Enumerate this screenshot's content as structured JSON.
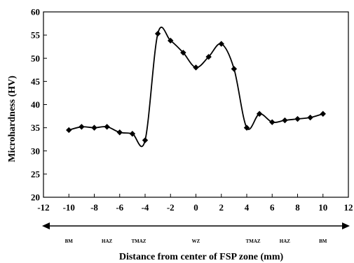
{
  "chart_data": {
    "type": "line",
    "title": "",
    "xlabel": "Distance from center of FSP zone (mm)",
    "ylabel": "Microhardness (HV)",
    "xlim": [
      -12,
      12
    ],
    "ylim": [
      20,
      60
    ],
    "x_ticks": [
      "-12",
      "-10",
      "-8",
      "-6",
      "-4",
      "-2",
      "0",
      "2",
      "4",
      "6",
      "8",
      "10",
      "12"
    ],
    "y_ticks": [
      "20",
      "25",
      "30",
      "35",
      "40",
      "45",
      "50",
      "55",
      "60"
    ],
    "zones": [
      {
        "label": "BM",
        "x": -10
      },
      {
        "label": "HAZ",
        "x": -7
      },
      {
        "label": "TMAZ",
        "x": -4.5
      },
      {
        "label": "WZ",
        "x": 0
      },
      {
        "label": "TMAZ",
        "x": 4.5
      },
      {
        "label": "HAZ",
        "x": 7
      },
      {
        "label": "BM",
        "x": 10
      }
    ],
    "series": [
      {
        "x": [
          -10,
          -9,
          -8,
          -7,
          -6,
          -5,
          -4,
          -3,
          -2,
          -1,
          0,
          1,
          2,
          3,
          4,
          5,
          6,
          7,
          8,
          9,
          10
        ],
        "y": [
          34.5,
          35.2,
          35.0,
          35.2,
          34.0,
          33.7,
          32.3,
          55.3,
          53.8,
          51.2,
          48.0,
          50.3,
          53.1,
          47.7,
          35.0,
          38.0,
          36.2,
          36.6,
          36.9,
          37.2,
          38.0
        ]
      }
    ],
    "grid": false,
    "marker": "diamond",
    "color": "#000000"
  }
}
